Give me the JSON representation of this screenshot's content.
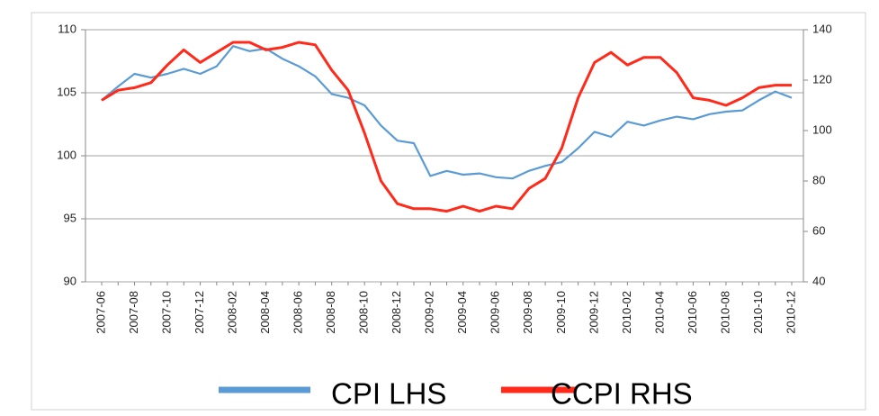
{
  "chart_data": {
    "type": "line",
    "categories": [
      "2007-06",
      null,
      "2007-08",
      null,
      "2007-10",
      null,
      "2007-12",
      null,
      "2008-02",
      null,
      "2008-04",
      null,
      "2008-06",
      null,
      "2008-08",
      null,
      "2008-10",
      null,
      "2008-12",
      null,
      "2009-02",
      null,
      "2009-04",
      null,
      "2009-06",
      null,
      "2009-08",
      null,
      "2009-10",
      null,
      "2009-12",
      null,
      "2010-02",
      null,
      "2010-04",
      null,
      "2010-06",
      null,
      "2010-08",
      null,
      "2010-10",
      null,
      "2010-12"
    ],
    "series": [
      {
        "name": "CPI  LHS",
        "color": "#5b9bd5",
        "values": [
          104.4,
          105.5,
          106.5,
          106.2,
          106.5,
          106.9,
          106.5,
          107.1,
          108.7,
          108.3,
          108.5,
          107.7,
          107.1,
          106.3,
          104.9,
          104.6,
          104.0,
          102.4,
          101.2,
          101.0,
          98.4,
          98.8,
          98.5,
          98.6,
          98.3,
          98.2,
          98.8,
          99.2,
          99.5,
          100.6,
          101.9,
          101.5,
          102.7,
          102.4,
          102.8,
          103.1,
          102.9,
          103.3,
          103.5,
          103.6,
          104.4,
          105.1,
          104.6
        ]
      },
      {
        "name": "CCPI RHS",
        "color": "#ff2a1a",
        "axis": "y2",
        "values": [
          112,
          116,
          117,
          119,
          126,
          132,
          127,
          131,
          135,
          135,
          132,
          133,
          135,
          134,
          124,
          116,
          99,
          80,
          71,
          69,
          69,
          68,
          70,
          68,
          70,
          69,
          77,
          81,
          93,
          113,
          127,
          131,
          126,
          129,
          129,
          123,
          113,
          112,
          110,
          113,
          117,
          118,
          118
        ]
      }
    ],
    "ylim": [
      90,
      110
    ],
    "yticks": [
      90,
      95,
      100,
      105,
      110
    ],
    "y2lim": [
      40,
      140
    ],
    "y2ticks": [
      40,
      60,
      80,
      100,
      120,
      140
    ],
    "grid": true,
    "legend": "bottom"
  }
}
